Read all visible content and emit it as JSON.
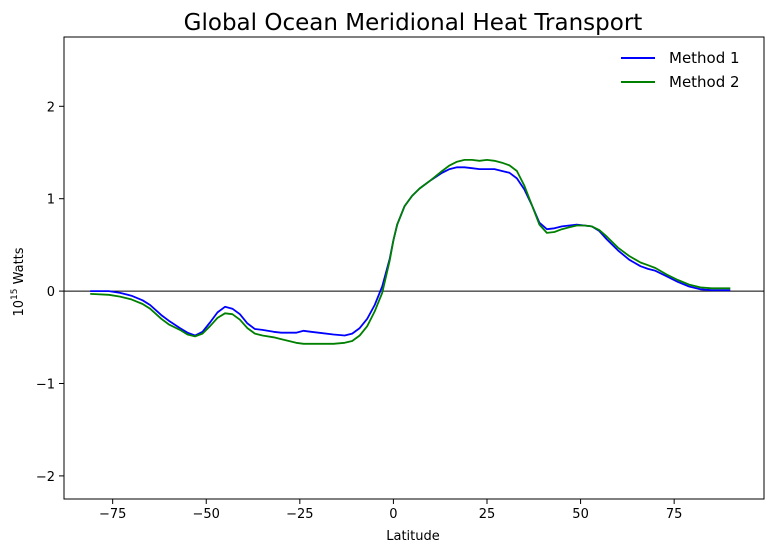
{
  "chart_data": {
    "type": "line",
    "title": "Global Ocean Meridional Heat Transport",
    "xlabel": "Latitude",
    "ylabel": "10",
    "ylabel_superscript": "15",
    "ylabel_unit": " Watts",
    "xlim": [
      -88,
      99
    ],
    "ylim": [
      -2.25,
      2.75
    ],
    "xticks": [
      -75,
      -50,
      -25,
      0,
      25,
      50,
      75
    ],
    "xtick_labels": [
      "−75",
      "−50",
      "−25",
      "0",
      "25",
      "50",
      "75"
    ],
    "yticks": [
      -2,
      -1,
      0,
      1,
      2
    ],
    "ytick_labels": [
      "−2",
      "−1",
      "0",
      "1",
      "2"
    ],
    "zero_line": true,
    "grid": false,
    "legend_position": "top-right",
    "series": [
      {
        "name": "Method 1",
        "color": "#0000ff",
        "x": [
          -81,
          -76,
          -73,
          -70,
          -67,
          -65,
          -62,
          -60,
          -57,
          -55,
          -53,
          -51,
          -49,
          -47,
          -45,
          -43,
          -41,
          -39,
          -37,
          -35,
          -32,
          -30,
          -26,
          -24,
          -22,
          -20,
          -16,
          -13,
          -11,
          -9,
          -7,
          -5,
          -3,
          -1,
          0,
          1,
          3,
          5,
          7,
          10,
          13,
          15,
          17,
          19,
          21,
          23,
          25,
          27,
          29,
          31,
          33,
          35,
          37,
          39,
          41,
          43,
          45,
          47,
          49,
          51,
          53,
          55,
          57,
          60,
          63,
          66,
          68,
          70,
          73,
          76,
          79,
          82,
          85,
          90
        ],
        "y": [
          0,
          0,
          -0.02,
          -0.05,
          -0.1,
          -0.15,
          -0.26,
          -0.32,
          -0.4,
          -0.45,
          -0.48,
          -0.44,
          -0.34,
          -0.23,
          -0.17,
          -0.19,
          -0.25,
          -0.35,
          -0.41,
          -0.42,
          -0.44,
          -0.45,
          -0.45,
          -0.43,
          -0.44,
          -0.45,
          -0.47,
          -0.48,
          -0.46,
          -0.4,
          -0.3,
          -0.15,
          0.05,
          0.35,
          0.55,
          0.72,
          0.92,
          1.03,
          1.11,
          1.2,
          1.28,
          1.32,
          1.34,
          1.34,
          1.33,
          1.32,
          1.32,
          1.32,
          1.3,
          1.28,
          1.22,
          1.1,
          0.93,
          0.74,
          0.67,
          0.68,
          0.7,
          0.71,
          0.72,
          0.71,
          0.7,
          0.65,
          0.56,
          0.44,
          0.34,
          0.27,
          0.24,
          0.22,
          0.16,
          0.1,
          0.05,
          0.02,
          0.01,
          0.01
        ]
      },
      {
        "name": "Method 2",
        "color": "#008000",
        "x": [
          -81,
          -76,
          -73,
          -70,
          -67,
          -65,
          -62,
          -60,
          -57,
          -55,
          -53,
          -51,
          -49,
          -47,
          -45,
          -43,
          -41,
          -39,
          -37,
          -35,
          -32,
          -30,
          -26,
          -24,
          -22,
          -20,
          -16,
          -13,
          -11,
          -9,
          -7,
          -5,
          -3,
          -1,
          0,
          1,
          3,
          5,
          7,
          10,
          13,
          15,
          17,
          19,
          21,
          23,
          25,
          27,
          29,
          31,
          33,
          35,
          37,
          39,
          41,
          43,
          45,
          47,
          49,
          51,
          53,
          55,
          57,
          60,
          63,
          66,
          68,
          70,
          73,
          76,
          79,
          82,
          85,
          90
        ],
        "y": [
          -0.03,
          -0.04,
          -0.06,
          -0.09,
          -0.14,
          -0.19,
          -0.3,
          -0.36,
          -0.42,
          -0.47,
          -0.49,
          -0.46,
          -0.38,
          -0.29,
          -0.24,
          -0.25,
          -0.31,
          -0.4,
          -0.46,
          -0.48,
          -0.5,
          -0.52,
          -0.56,
          -0.57,
          -0.57,
          -0.57,
          -0.57,
          -0.56,
          -0.54,
          -0.48,
          -0.38,
          -0.22,
          -0.02,
          0.33,
          0.55,
          0.72,
          0.92,
          1.03,
          1.11,
          1.2,
          1.3,
          1.36,
          1.4,
          1.42,
          1.42,
          1.41,
          1.42,
          1.41,
          1.39,
          1.36,
          1.3,
          1.14,
          0.93,
          0.72,
          0.63,
          0.64,
          0.67,
          0.69,
          0.71,
          0.71,
          0.7,
          0.66,
          0.59,
          0.47,
          0.38,
          0.31,
          0.28,
          0.25,
          0.18,
          0.12,
          0.07,
          0.04,
          0.03,
          0.03
        ]
      }
    ]
  }
}
